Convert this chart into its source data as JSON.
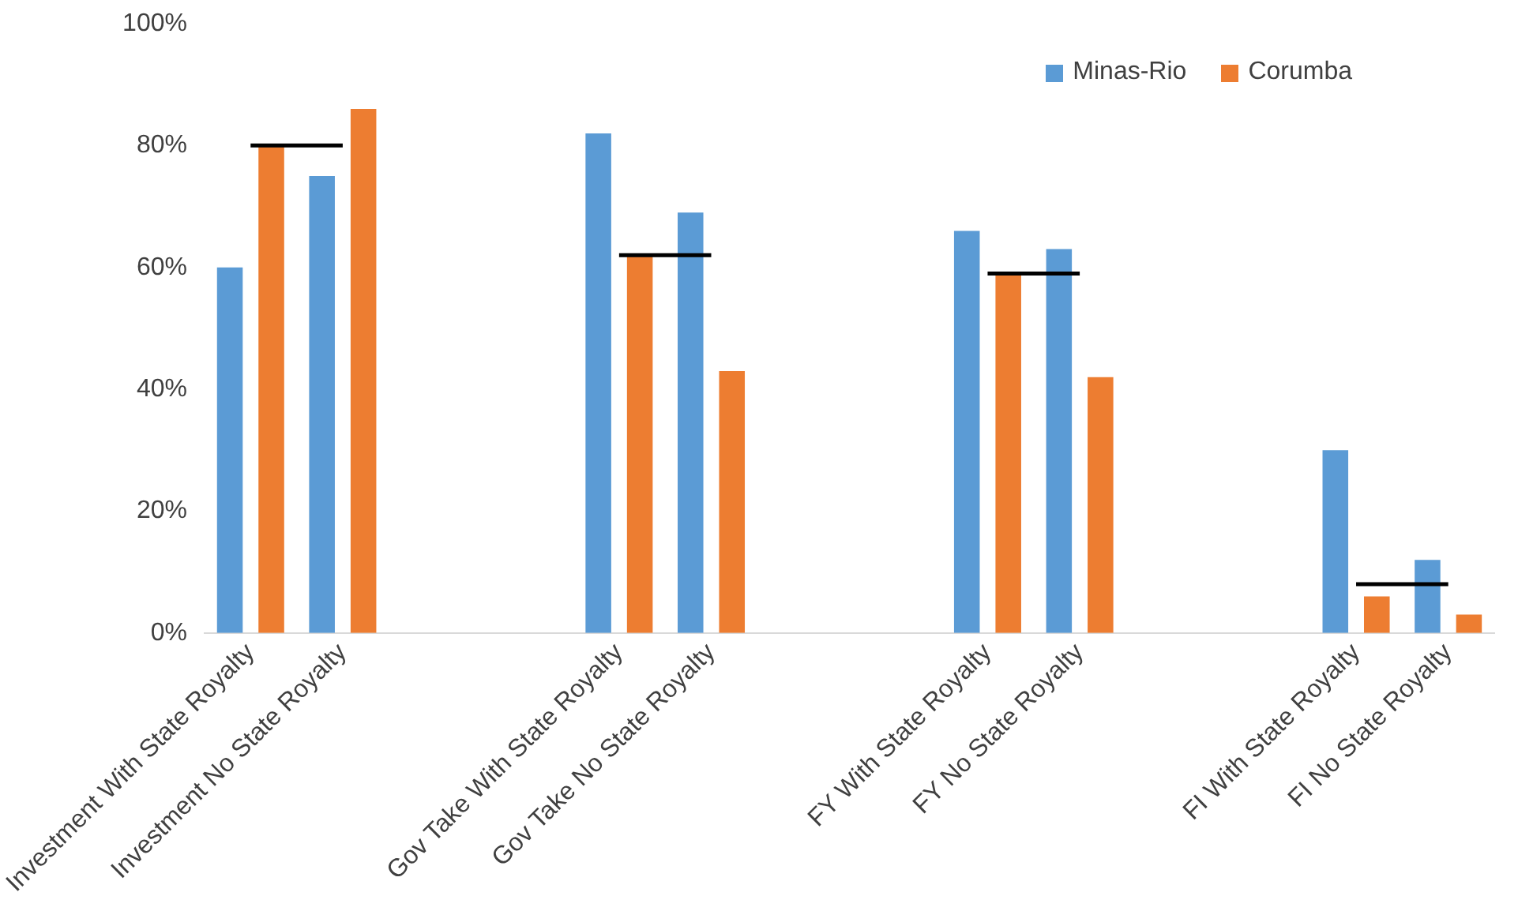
{
  "chart_data": {
    "type": "bar",
    "categories": [
      "Investment With State Royalty",
      "Investment No State Royalty",
      null,
      null,
      "Gov Take With State Royalty",
      "Gov Take No State Royalty",
      null,
      null,
      "FY With State Royalty",
      "FY No State Royalty",
      null,
      null,
      "FI With State Royalty",
      "FI No State Royalty"
    ],
    "series": [
      {
        "name": "Minas-Rio",
        "color": "#5b9bd5",
        "values": [
          60,
          75,
          null,
          null,
          82,
          69,
          null,
          null,
          66,
          63,
          null,
          null,
          30,
          12
        ]
      },
      {
        "name": "Corumba",
        "color": "#ed7d31",
        "values": [
          80,
          86,
          null,
          null,
          62,
          43,
          null,
          null,
          59,
          42,
          null,
          null,
          6,
          3
        ]
      },
      {
        "type": "line",
        "color": "#000000",
        "values": [
          80,
          80,
          null,
          null,
          62,
          62,
          null,
          null,
          59,
          59,
          null,
          null,
          8,
          8
        ]
      }
    ],
    "ylim": [
      0,
      100
    ],
    "yticks": [
      {
        "value": 0,
        "label": "0%"
      },
      {
        "value": 20,
        "label": "20%"
      },
      {
        "value": 40,
        "label": "40%"
      },
      {
        "value": 60,
        "label": "60%"
      },
      {
        "value": 80,
        "label": "80%"
      },
      {
        "value": 100,
        "label": "100%"
      }
    ],
    "grid": false,
    "legend": "top right",
    "marker": "none"
  }
}
